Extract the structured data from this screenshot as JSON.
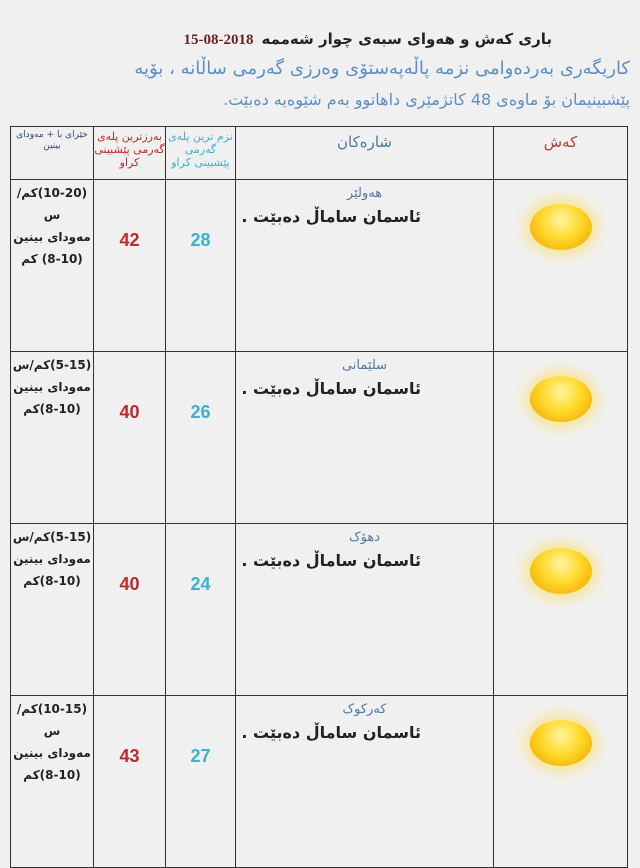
{
  "header": {
    "title": "باری کەش و هەوای سبەی چوار شەممە",
    "date": "2018-08-15",
    "line1": "کاریگەری بەردەوامی نزمە پاڵەپەستۆی وەرزی گەرمی ساڵانە ، بۆیە",
    "line2": "پێشبینیمان بۆ ماوەی 48 کاتژمێری داهاتوو بەم شێوەیە دەبێت."
  },
  "columns": {
    "wind": "خێرای با + مەودای بینین",
    "max": "بەرزترین پلەی گەرمی پێشبینی کراو",
    "min": "نزم ترین پلەی گەرمی پێشبینی کراو",
    "cities": "شارەکان",
    "weather": "کەش"
  },
  "rows": [
    {
      "wind": "(10-20)کم/س",
      "vis_label": "مەودای بینین",
      "vis": "(8-10) کم",
      "max": "42",
      "min": "28",
      "city": "هەولێر",
      "condition": "ئاسمان ساماڵ دەبێت .",
      "icon": "sun-icon"
    },
    {
      "wind": "(5-15)کم/س",
      "vis_label": "مەودای بینین",
      "vis": "(8-10)کم",
      "max": "40",
      "min": "26",
      "city": "سلێمانی",
      "condition": "ئاسمان ساماڵ دەبێت .",
      "icon": "sun-icon"
    },
    {
      "wind": "(5-15)کم/س",
      "vis_label": "مەودای بینین",
      "vis": "(8-10)کم",
      "max": "40",
      "min": "24",
      "city": "دهۆک",
      "condition": "ئاسمان ساماڵ دەبێت .",
      "icon": "sun-icon"
    },
    {
      "wind": "(10-15)کم/س",
      "vis_label": "مەودای بینین",
      "vis": "(8-10)کم",
      "max": "43",
      "min": "27",
      "city": "کەرکوک",
      "condition": "ئاسمان ساماڵ دەبێت .",
      "icon": "sun-icon"
    }
  ],
  "colors": {
    "max": "#c0282a",
    "min": "#3bb1cf",
    "city": "#4e78a6",
    "intro": "#5b8fc4"
  }
}
